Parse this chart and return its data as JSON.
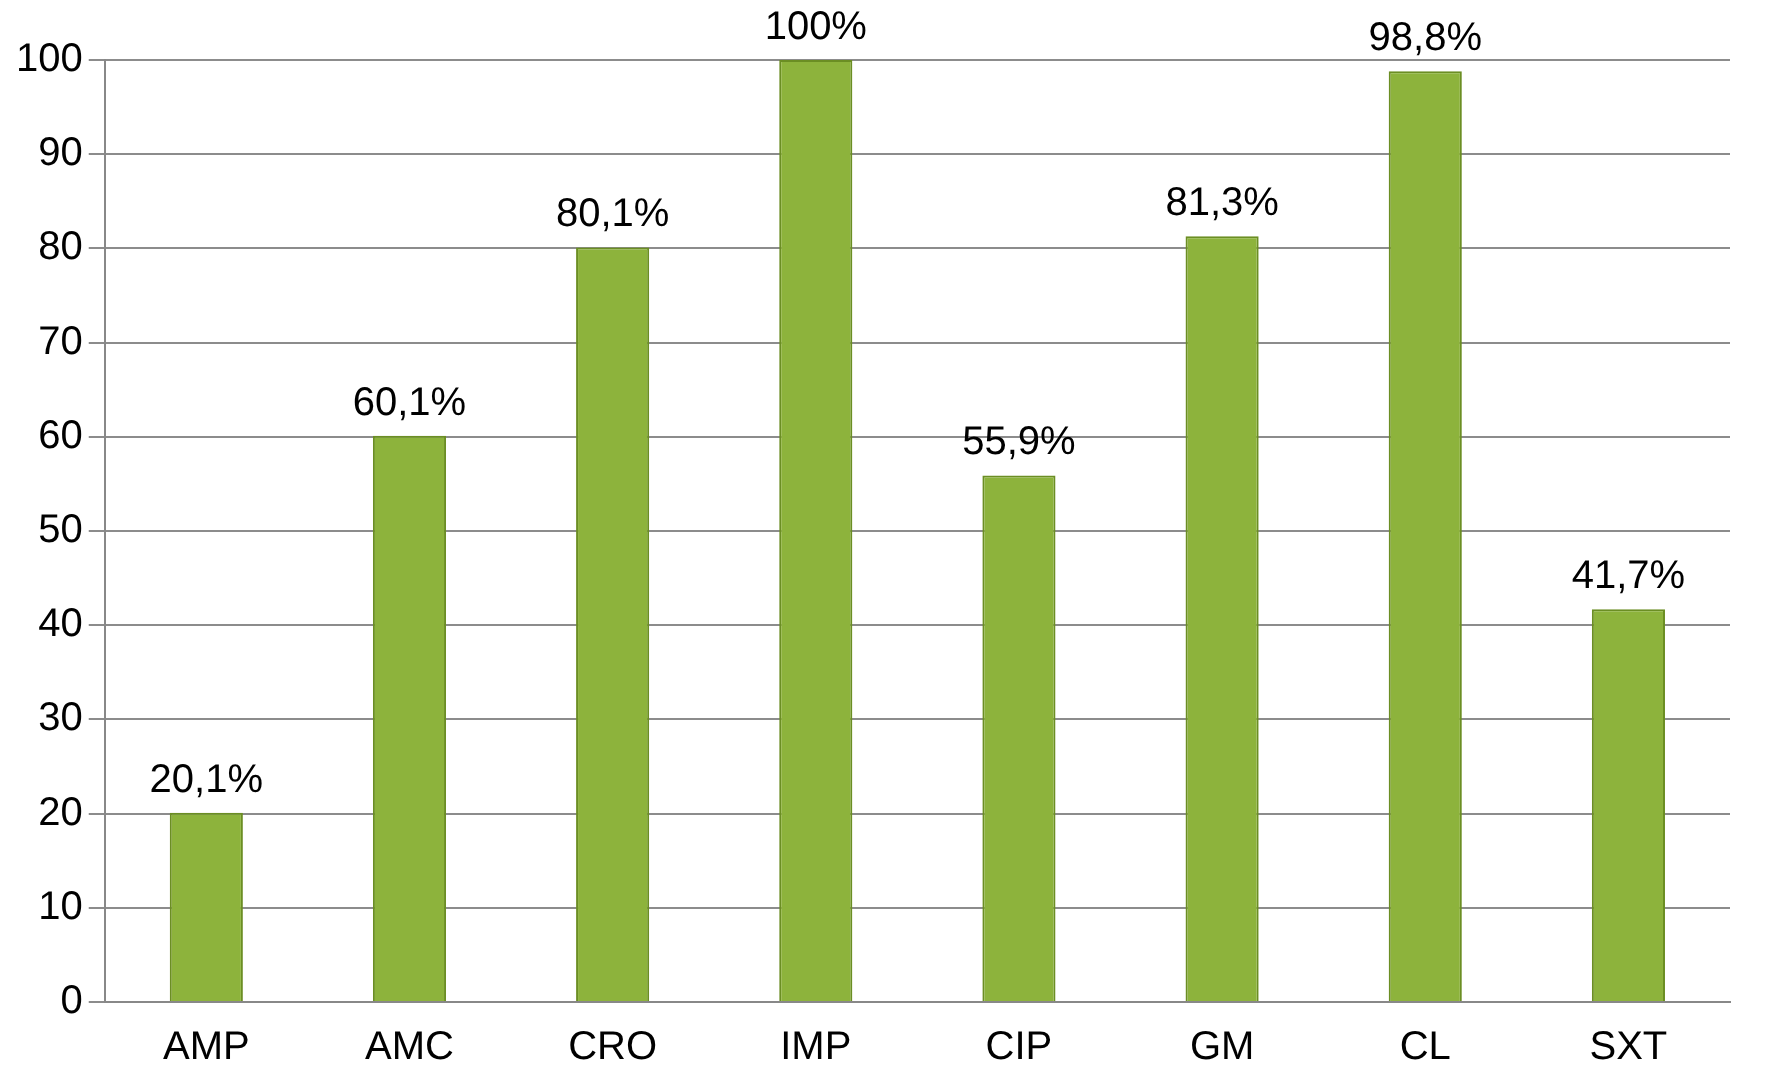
{
  "chart_data": {
    "type": "bar",
    "categories": [
      "AMP",
      "AMC",
      "CRO",
      "IMP",
      "CIP",
      "GM",
      "CL",
      "SXT"
    ],
    "values": [
      20.1,
      60.1,
      80.1,
      100,
      55.9,
      81.3,
      98.8,
      41.7
    ],
    "value_labels": [
      "20,1%",
      "60,1%",
      "80,1%",
      "100%",
      "55,9%",
      "81,3%",
      "98,8%",
      "41,7%"
    ],
    "color": "#8db33c",
    "ylim": [
      0,
      100
    ],
    "yticks": [
      0,
      10,
      20,
      30,
      40,
      50,
      60,
      70,
      80,
      90,
      100
    ],
    "grid": "y",
    "legend": false
  }
}
